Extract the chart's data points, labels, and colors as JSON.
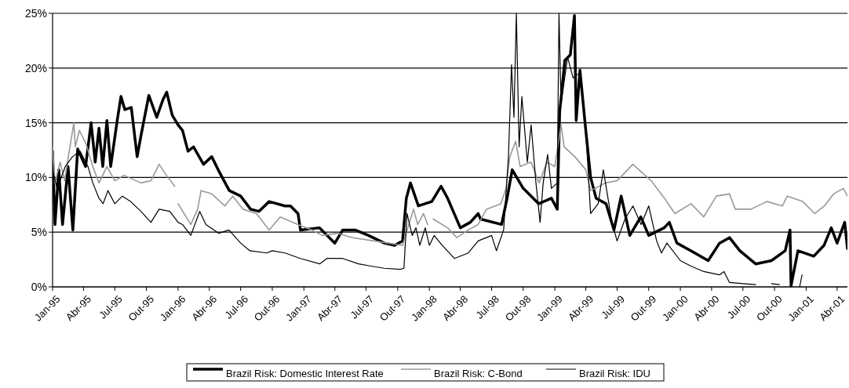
{
  "chart_data": {
    "type": "line",
    "ylim": [
      0,
      25
    ],
    "yticks": [
      {
        "value": 0,
        "label": "0%"
      },
      {
        "value": 5,
        "label": "5%"
      },
      {
        "value": 10,
        "label": "10%"
      },
      {
        "value": 15,
        "label": "15%"
      },
      {
        "value": 20,
        "label": "20%"
      },
      {
        "value": 25,
        "label": "25%"
      }
    ],
    "xlim": [
      "1995-01-01",
      "2001-05-01"
    ],
    "xticks": [
      {
        "value": "1995-01",
        "label": "Jan-95"
      },
      {
        "value": "1995-04",
        "label": "Abr-95"
      },
      {
        "value": "1995-07",
        "label": "Jul-95"
      },
      {
        "value": "1995-10",
        "label": "Out-95"
      },
      {
        "value": "1996-01",
        "label": "Jan-96"
      },
      {
        "value": "1996-04",
        "label": "Abr-96"
      },
      {
        "value": "1996-07",
        "label": "Jul-96"
      },
      {
        "value": "1996-10",
        "label": "Out-96"
      },
      {
        "value": "1997-01",
        "label": "Jan-97"
      },
      {
        "value": "1997-04",
        "label": "Abr-97"
      },
      {
        "value": "1997-07",
        "label": "Jul-97"
      },
      {
        "value": "1997-10",
        "label": "Out-97"
      },
      {
        "value": "1998-01",
        "label": "Jan-98"
      },
      {
        "value": "1998-04",
        "label": "Abr-98"
      },
      {
        "value": "1998-07",
        "label": "Jul-98"
      },
      {
        "value": "1998-10",
        "label": "Out-98"
      },
      {
        "value": "1999-01",
        "label": "Jan-99"
      },
      {
        "value": "1999-04",
        "label": "Abr-99"
      },
      {
        "value": "1999-07",
        "label": "Jul-99"
      },
      {
        "value": "1999-10",
        "label": "Out-99"
      },
      {
        "value": "2000-01",
        "label": "Jan-00"
      },
      {
        "value": "2000-04",
        "label": "Abr-00"
      },
      {
        "value": "2000-07",
        "label": "Jul-00"
      },
      {
        "value": "2000-10",
        "label": "Out-00"
      },
      {
        "value": "2001-01",
        "label": "Jan-01"
      },
      {
        "value": "2001-04",
        "label": "Abr-01"
      }
    ],
    "grid": "y",
    "legend": "bottom",
    "marker": "none",
    "line_style": "solid",
    "series": [
      {
        "name": "Brazil Risk: Domestic Interest Rate",
        "color": "#000000",
        "x": [
          "1995-01-01",
          "1995-01-08",
          "1995-01-19",
          "1995-01-30",
          "1995-02-15",
          "1995-03-01",
          "1995-03-15",
          "1995-04-07",
          "1995-04-23",
          "1995-05-05",
          "1995-05-16",
          "1995-05-27",
          "1995-06-08",
          "1995-06-19",
          "1995-07-08",
          "1995-07-19",
          "1995-07-30",
          "1995-08-18",
          "1995-09-04",
          "1995-09-15",
          "1995-10-08",
          "1995-10-31",
          "1995-11-18",
          "1995-11-29",
          "1995-12-15",
          "1996-01-01",
          "1996-01-14",
          "1996-01-30",
          "1996-02-15",
          "1996-03-15",
          "1996-04-08",
          "1996-04-30",
          "1996-05-29",
          "1996-07-01",
          "1996-07-30",
          "1996-08-23",
          "1996-09-22",
          "1996-11-07",
          "1996-11-23",
          "1996-12-15",
          "1996-12-22",
          "1997-02-15",
          "1997-04-01",
          "1997-04-24",
          "1997-05-30",
          "1997-07-08",
          "1997-08-23",
          "1997-09-22",
          "1997-10-15",
          "1997-10-26",
          "1997-11-07",
          "1997-11-30",
          "1998-01-08",
          "1998-02-04",
          "1998-02-23",
          "1998-04-01",
          "1998-04-30",
          "1998-05-23",
          "1998-05-30",
          "1998-07-30",
          "1998-08-15",
          "1998-08-30",
          "1998-10-01",
          "1998-11-15",
          "1998-12-22",
          "1999-01-08",
          "1999-01-15",
          "1999-01-30",
          "1999-02-15",
          "1999-02-27",
          "1999-03-04",
          "1999-03-15",
          "1999-04-01",
          "1999-04-15",
          "1999-05-01",
          "1999-05-30",
          "1999-06-22",
          "1999-07-13",
          "1999-08-07",
          "1999-09-08",
          "1999-10-01",
          "1999-11-15",
          "1999-11-30",
          "1999-12-22",
          "2000-02-01",
          "2000-03-22",
          "2000-04-24",
          "2000-05-23",
          "2000-06-22",
          "2000-08-07",
          "2000-09-22",
          "2000-11-01",
          "2000-11-15",
          "2000-11-18",
          "2000-12-08",
          "2001-01-23",
          "2001-02-22",
          "2001-03-15",
          "2001-04-01",
          "2001-04-23",
          "2001-05-01"
        ],
        "values": [
          12.4,
          5.7,
          10.7,
          5.7,
          11.0,
          5.2,
          12.6,
          11.0,
          15.0,
          11.4,
          14.5,
          11.0,
          15.2,
          11.0,
          15.2,
          17.4,
          16.2,
          16.4,
          11.9,
          13.8,
          17.5,
          15.5,
          17.1,
          17.8,
          15.7,
          14.8,
          14.3,
          12.4,
          12.8,
          11.2,
          11.9,
          10.5,
          8.8,
          8.3,
          7.1,
          6.9,
          7.8,
          7.4,
          7.4,
          6.7,
          5.2,
          5.4,
          4.0,
          5.2,
          5.2,
          4.7,
          4.0,
          3.8,
          4.2,
          8.1,
          9.5,
          7.4,
          7.8,
          9.2,
          8.1,
          5.4,
          5.9,
          6.7,
          6.2,
          5.7,
          8.1,
          10.7,
          9.0,
          7.6,
          8.1,
          7.1,
          16.0,
          20.7,
          21.2,
          24.8,
          15.2,
          19.8,
          14.3,
          10.0,
          8.1,
          7.6,
          5.2,
          8.3,
          4.7,
          6.4,
          4.7,
          5.4,
          5.9,
          4.0,
          3.3,
          2.4,
          4.0,
          4.5,
          3.3,
          2.1,
          2.4,
          3.3,
          5.2,
          0.1,
          3.3,
          2.8,
          3.8,
          5.4,
          4.0,
          5.9,
          3.5
        ]
      },
      {
        "name": "Brazil Risk: C-Bond",
        "color": "#999999",
        "x": [
          "1995-01-01",
          "1995-01-08",
          "1995-01-23",
          "1995-02-05",
          "1995-02-16",
          "1995-03-04",
          "1995-03-08",
          "1995-03-20",
          "1995-04-08",
          "1995-04-28",
          "1995-05-16",
          "1995-06-08",
          "1995-07-01",
          "1995-07-28",
          "1995-09-15",
          "1995-10-14",
          "1995-11-07",
          "1995-11-28",
          "1995-12-22",
          "1995-12-28",
          "1996-01-01",
          "1996-02-07",
          "1996-02-27",
          "1996-03-08",
          "1996-04-08",
          "1996-05-16",
          "1996-06-08",
          "1996-07-08",
          "1996-08-16",
          "1996-09-22",
          "1996-10-24",
          "1996-12-15",
          "1997-01-24",
          "1997-02-23",
          "1997-04-08",
          "1997-05-23",
          "1997-07-24",
          "1997-10-15",
          "1997-11-16",
          "1997-11-28",
          "1997-12-15",
          "1997-12-27",
          "1998-01-03",
          "1998-01-12",
          "1998-02-23",
          "1998-03-22",
          "1998-04-24",
          "1998-05-23",
          "1998-06-16",
          "1998-07-28",
          "1998-08-12",
          "1998-08-23",
          "1998-09-09",
          "1998-09-22",
          "1998-10-24",
          "1998-11-16",
          "1998-12-09",
          "1999-01-01",
          "1999-01-19",
          "1999-01-28",
          "1999-02-28",
          "1999-04-01",
          "1999-04-15",
          "1999-05-28",
          "1999-07-01",
          "1999-08-16",
          "1999-10-08",
          "1999-11-16",
          "1999-12-16",
          "2000-02-01",
          "2000-03-09",
          "2000-04-15",
          "2000-05-23",
          "2000-06-09",
          "2000-07-24",
          "2000-09-09",
          "2000-10-24",
          "2000-11-07",
          "2000-12-22",
          "2001-01-26",
          "2001-02-23",
          "2001-03-22",
          "2001-04-19",
          "2001-05-01"
        ],
        "values": [
          12.8,
          9.5,
          11.4,
          9.7,
          11.9,
          15.0,
          12.8,
          14.3,
          13.1,
          11.0,
          9.5,
          11.0,
          9.7,
          10.2,
          9.5,
          9.7,
          11.2,
          10.2,
          9.2,
          null,
          7.6,
          5.7,
          7.1,
          8.8,
          8.5,
          7.4,
          8.3,
          7.1,
          6.7,
          5.2,
          6.4,
          5.7,
          5.2,
          4.7,
          4.9,
          4.5,
          4.2,
          3.8,
          7.1,
          5.7,
          6.7,
          5.7,
          null,
          6.2,
          5.4,
          4.5,
          5.2,
          5.7,
          7.1,
          7.6,
          9.0,
          11.9,
          13.3,
          11.0,
          11.4,
          9.5,
          11.4,
          11.0,
          14.8,
          12.8,
          11.9,
          10.7,
          8.8,
          9.5,
          9.7,
          11.2,
          9.7,
          8.1,
          6.7,
          7.6,
          6.4,
          8.3,
          8.5,
          7.1,
          7.1,
          7.8,
          7.4,
          8.3,
          7.8,
          6.7,
          7.4,
          8.5,
          9.0,
          8.3
        ]
      },
      {
        "name": "Brazil Risk: IDU",
        "color": "#000000",
        "x": [
          "1995-01-01",
          "1995-01-14",
          "1995-02-07",
          "1995-02-28",
          "1995-03-22",
          "1995-04-14",
          "1995-04-28",
          "1995-05-16",
          "1995-05-28",
          "1995-06-11",
          "1995-07-01",
          "1995-07-23",
          "1995-08-16",
          "1995-09-15",
          "1995-10-14",
          "1995-11-07",
          "1995-12-08",
          "1996-01-01",
          "1996-01-14",
          "1996-02-07",
          "1996-03-04",
          "1996-03-22",
          "1996-04-28",
          "1996-05-28",
          "1996-07-01",
          "1996-07-28",
          "1996-09-15",
          "1996-10-01",
          "1996-11-07",
          "1996-12-22",
          "1997-02-16",
          "1997-03-09",
          "1997-04-24",
          "1997-06-09",
          "1997-07-15",
          "1997-08-23",
          "1997-10-08",
          "1997-10-19",
          "1997-10-28",
          "1997-11-12",
          "1997-11-23",
          "1997-12-04",
          "1997-12-20",
          "1998-01-01",
          "1998-01-15",
          "1998-02-07",
          "1998-03-15",
          "1998-04-24",
          "1998-05-23",
          "1998-07-01",
          "1998-07-15",
          "1998-08-05",
          "1998-08-19",
          "1998-08-28",
          "1998-09-04",
          "1998-09-11",
          "1998-09-19",
          "1998-09-27",
          "1998-10-13",
          "1998-10-24",
          "1998-11-07",
          "1998-11-19",
          "1998-11-28",
          "1998-12-11",
          "1998-12-22",
          "1999-01-08",
          "1999-01-13",
          "1999-01-19",
          "1999-02-07",
          "1999-02-23",
          "1999-03-16",
          "1999-04-01",
          "1999-04-15",
          "1999-05-07",
          "1999-05-22",
          "1999-06-16",
          "1999-07-01",
          "1999-07-24",
          "1999-08-16",
          "1999-09-09",
          "1999-10-01",
          "1999-10-24",
          "1999-11-07",
          "1999-11-23",
          "2000-01-01",
          "2000-02-01",
          "2000-03-09",
          "2000-04-24",
          "2000-05-07",
          "2000-05-23",
          "2000-07-01",
          "2000-08-07",
          "2000-08-30",
          "2000-09-22",
          "2000-10-15",
          "2000-10-26",
          "2000-12-13",
          "2000-12-20"
        ],
        "values": [
          10.7,
          9.0,
          11.0,
          11.9,
          12.4,
          11.0,
          9.5,
          8.1,
          7.6,
          8.8,
          7.6,
          8.3,
          7.8,
          6.9,
          5.9,
          7.1,
          6.9,
          5.9,
          5.7,
          4.7,
          6.9,
          5.7,
          4.9,
          5.2,
          4.0,
          3.3,
          3.1,
          3.3,
          3.1,
          2.6,
          2.1,
          2.6,
          2.6,
          2.1,
          1.9,
          1.7,
          1.6,
          1.7,
          6.7,
          4.7,
          5.4,
          3.8,
          5.4,
          3.8,
          4.7,
          3.8,
          2.6,
          3.1,
          4.2,
          4.7,
          3.3,
          5.2,
          11.9,
          20.3,
          15.5,
          25,
          12.8,
          17.4,
          11.4,
          14.8,
          9.5,
          5.9,
          9.5,
          12.1,
          9.0,
          9.5,
          25,
          16.7,
          21.0,
          19.1,
          19.6,
          14.3,
          6.7,
          7.6,
          10.7,
          5.9,
          4.2,
          6.2,
          7.4,
          5.7,
          7.4,
          4.2,
          3.1,
          4.0,
          2.4,
          1.9,
          1.4,
          1.1,
          1.4,
          0.4,
          0.3,
          0.2,
          null,
          0.3,
          0.2,
          null,
          0.0,
          1.1
        ]
      }
    ]
  }
}
